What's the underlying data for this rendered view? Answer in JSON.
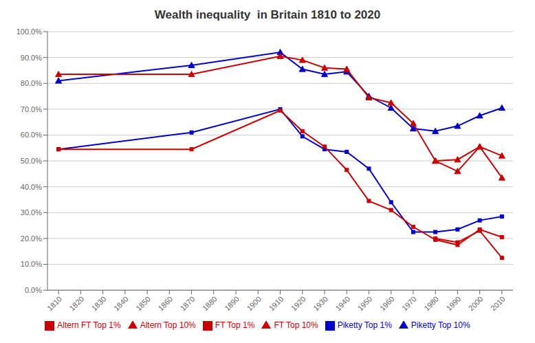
{
  "chart_data": {
    "type": "line",
    "title": "Wealth inequality  in Britain 1810 to 2020",
    "x": [
      1810,
      1870,
      1910,
      1920,
      1930,
      1940,
      1950,
      1960,
      1970,
      1980,
      1990,
      2000,
      2010
    ],
    "series": [
      {
        "name": "Piketty Top 10%",
        "color": "#0000CC",
        "marker": "triangle",
        "values": [
          0.81,
          0.87,
          0.92,
          0.855,
          0.835,
          0.845,
          0.75,
          0.705,
          0.625,
          0.615,
          0.635,
          0.675,
          0.705
        ]
      },
      {
        "name": "Piketty Top 1%",
        "color": "#0000CC",
        "marker": "square",
        "values": [
          0.545,
          0.61,
          0.7,
          0.595,
          0.545,
          0.535,
          0.47,
          0.34,
          0.225,
          0.225,
          0.235,
          0.27,
          0.285
        ]
      },
      {
        "name": "FT Top 10%",
        "color": "#CC0000",
        "marker": "triangle",
        "values": [
          0.835,
          0.835,
          0.905,
          0.89,
          0.86,
          0.855,
          0.745,
          0.725,
          0.645,
          0.5,
          0.505,
          0.555,
          0.52
        ]
      },
      {
        "name": "FT Top 1%",
        "color": "#CC0000",
        "marker": "square",
        "values": [
          0.545,
          0.545,
          0.695,
          0.615,
          0.555,
          0.465,
          0.345,
          0.31,
          0.245,
          0.195,
          0.175,
          0.235,
          0.205
        ]
      },
      {
        "name": "Altern Top 10%",
        "color": "#CC0000",
        "marker": "triangle",
        "values": [
          null,
          null,
          null,
          null,
          null,
          null,
          null,
          null,
          null,
          0.5,
          0.46,
          0.555,
          0.435
        ]
      },
      {
        "name": "Altern FT Top 1%",
        "color": "#CC0000",
        "marker": "square",
        "values": [
          null,
          null,
          null,
          null,
          null,
          null,
          null,
          null,
          null,
          0.2,
          0.185,
          0.23,
          0.125
        ]
      }
    ],
    "xlim": [
      1805,
      2015
    ],
    "ylim": [
      0,
      1
    ],
    "xticks": [
      1810,
      1820,
      1830,
      1840,
      1850,
      1860,
      1870,
      1880,
      1890,
      1900,
      1910,
      1920,
      1930,
      1940,
      1950,
      1960,
      1970,
      1980,
      1990,
      2000,
      2010
    ],
    "yticks": [
      {
        "value": 0,
        "label": "0.0%"
      },
      {
        "value": 0.1,
        "label": "10.0%"
      },
      {
        "value": 0.2,
        "label": "20.0%"
      },
      {
        "value": 0.3,
        "label": "30.0%"
      },
      {
        "value": 0.4,
        "label": "40.0%"
      },
      {
        "value": 0.5,
        "label": "50.0%"
      },
      {
        "value": 0.6,
        "label": "60.0%"
      },
      {
        "value": 0.7,
        "label": "70.0%"
      },
      {
        "value": 0.8,
        "label": "80.0%"
      },
      {
        "value": 0.9,
        "label": "90.0%"
      },
      {
        "value": 1,
        "label": "100.0%"
      }
    ],
    "grid": true,
    "legend": "bottom"
  }
}
